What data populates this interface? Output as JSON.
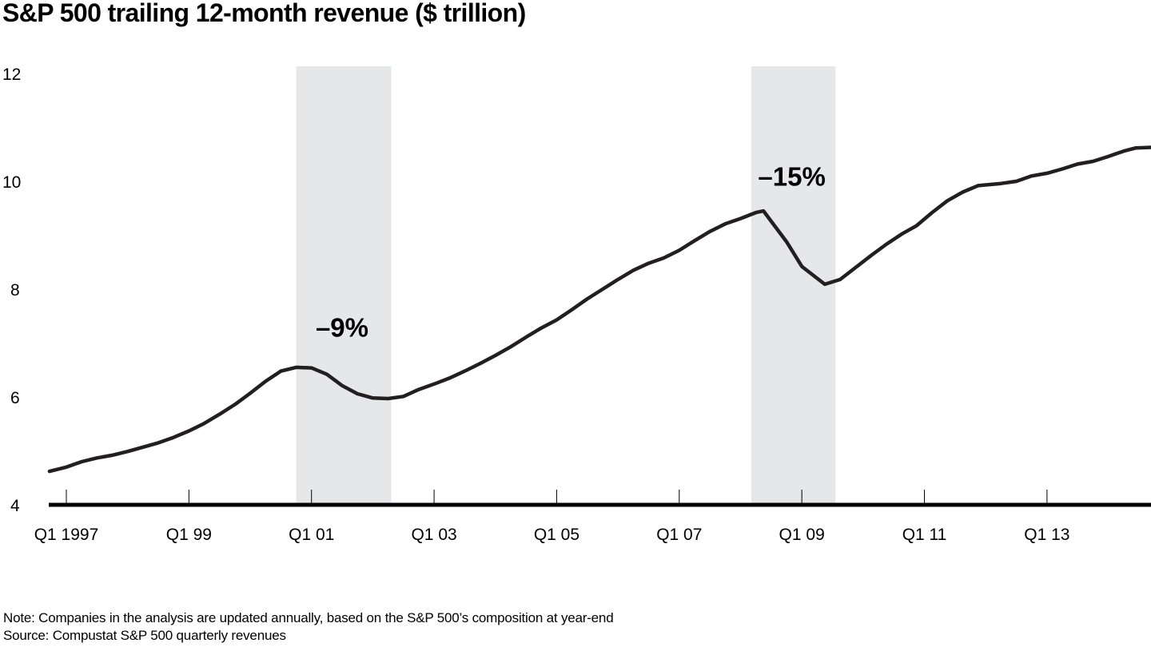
{
  "title": "S&P 500 trailing 12-month revenue ($ trillion)",
  "footer": {
    "note": "Note: Companies in the analysis are updated annually, based on the S&P 500’s composition at year-end",
    "source": "Source: Compustat S&P 500 quarterly revenues"
  },
  "colors": {
    "line": "#231f20",
    "recession_shade": "#e6e7e8",
    "axis": "#000000"
  },
  "chart_data": {
    "type": "line",
    "title": "S&P 500 trailing 12-month revenue ($ trillion)",
    "xlabel": "",
    "ylabel": "$ trillion",
    "ylim": [
      4,
      12
    ],
    "yticks": [
      4,
      6,
      8,
      10,
      12
    ],
    "grid": false,
    "legend": "none",
    "x_units": "quarters since Q1 1997",
    "xlim": [
      -1.1,
      70.8
    ],
    "xticks": [
      {
        "q": 0,
        "label": "Q1 1997"
      },
      {
        "q": 8,
        "label": "Q1 99"
      },
      {
        "q": 16,
        "label": "Q1 01"
      },
      {
        "q": 24,
        "label": "Q1 03"
      },
      {
        "q": 32,
        "label": "Q1 05"
      },
      {
        "q": 40,
        "label": "Q1 07"
      },
      {
        "q": 48,
        "label": "Q1 09"
      },
      {
        "q": 56,
        "label": "Q1 11"
      },
      {
        "q": 64,
        "label": "Q1 13"
      }
    ],
    "shaded_periods": [
      {
        "start_q": 15,
        "end_q": 21.2,
        "label": "–9%",
        "label_value": 7.3
      },
      {
        "start_q": 44.7,
        "end_q": 50.2,
        "label": "–15%",
        "label_value": 10.1
      }
    ],
    "series": [
      {
        "name": "Trailing 12-month revenue",
        "points": [
          [
            -1.1,
            4.62
          ],
          [
            0,
            4.7
          ],
          [
            1,
            4.8
          ],
          [
            2,
            4.87
          ],
          [
            3,
            4.92
          ],
          [
            4,
            4.99
          ],
          [
            5,
            5.07
          ],
          [
            6,
            5.15
          ],
          [
            7,
            5.25
          ],
          [
            8,
            5.37
          ],
          [
            9,
            5.51
          ],
          [
            10,
            5.68
          ],
          [
            11,
            5.86
          ],
          [
            12,
            6.07
          ],
          [
            13,
            6.29
          ],
          [
            14,
            6.48
          ],
          [
            15,
            6.55
          ],
          [
            16,
            6.54
          ],
          [
            17,
            6.42
          ],
          [
            18,
            6.21
          ],
          [
            19,
            6.06
          ],
          [
            20,
            5.98
          ],
          [
            21,
            5.97
          ],
          [
            22,
            6.01
          ],
          [
            23,
            6.14
          ],
          [
            24,
            6.24
          ],
          [
            25,
            6.35
          ],
          [
            26,
            6.48
          ],
          [
            27,
            6.62
          ],
          [
            28,
            6.77
          ],
          [
            29,
            6.93
          ],
          [
            30,
            7.11
          ],
          [
            31,
            7.28
          ],
          [
            32,
            7.43
          ],
          [
            33,
            7.62
          ],
          [
            34,
            7.82
          ],
          [
            35,
            8.0
          ],
          [
            36,
            8.18
          ],
          [
            37,
            8.35
          ],
          [
            38,
            8.48
          ],
          [
            39,
            8.58
          ],
          [
            40,
            8.72
          ],
          [
            41,
            8.9
          ],
          [
            42,
            9.07
          ],
          [
            43,
            9.21
          ],
          [
            44,
            9.31
          ],
          [
            45,
            9.42
          ],
          [
            45.5,
            9.45
          ],
          [
            47,
            8.88
          ],
          [
            48,
            8.42
          ],
          [
            49.5,
            8.09
          ],
          [
            50.5,
            8.18
          ],
          [
            51.5,
            8.4
          ],
          [
            52.5,
            8.62
          ],
          [
            53.5,
            8.83
          ],
          [
            54.5,
            9.02
          ],
          [
            55.5,
            9.18
          ],
          [
            56.5,
            9.42
          ],
          [
            57.5,
            9.64
          ],
          [
            58.5,
            9.8
          ],
          [
            59.5,
            9.92
          ],
          [
            61,
            9.96
          ],
          [
            62,
            10.0
          ],
          [
            63,
            10.1
          ],
          [
            64,
            10.15
          ],
          [
            65,
            10.23
          ],
          [
            66,
            10.32
          ],
          [
            67,
            10.37
          ],
          [
            68,
            10.46
          ],
          [
            69,
            10.56
          ],
          [
            69.8,
            10.62
          ],
          [
            70.8,
            10.63
          ]
        ]
      }
    ],
    "annotations": [
      {
        "text": "–9%",
        "period": 0
      },
      {
        "text": "–15%",
        "period": 1
      }
    ]
  }
}
